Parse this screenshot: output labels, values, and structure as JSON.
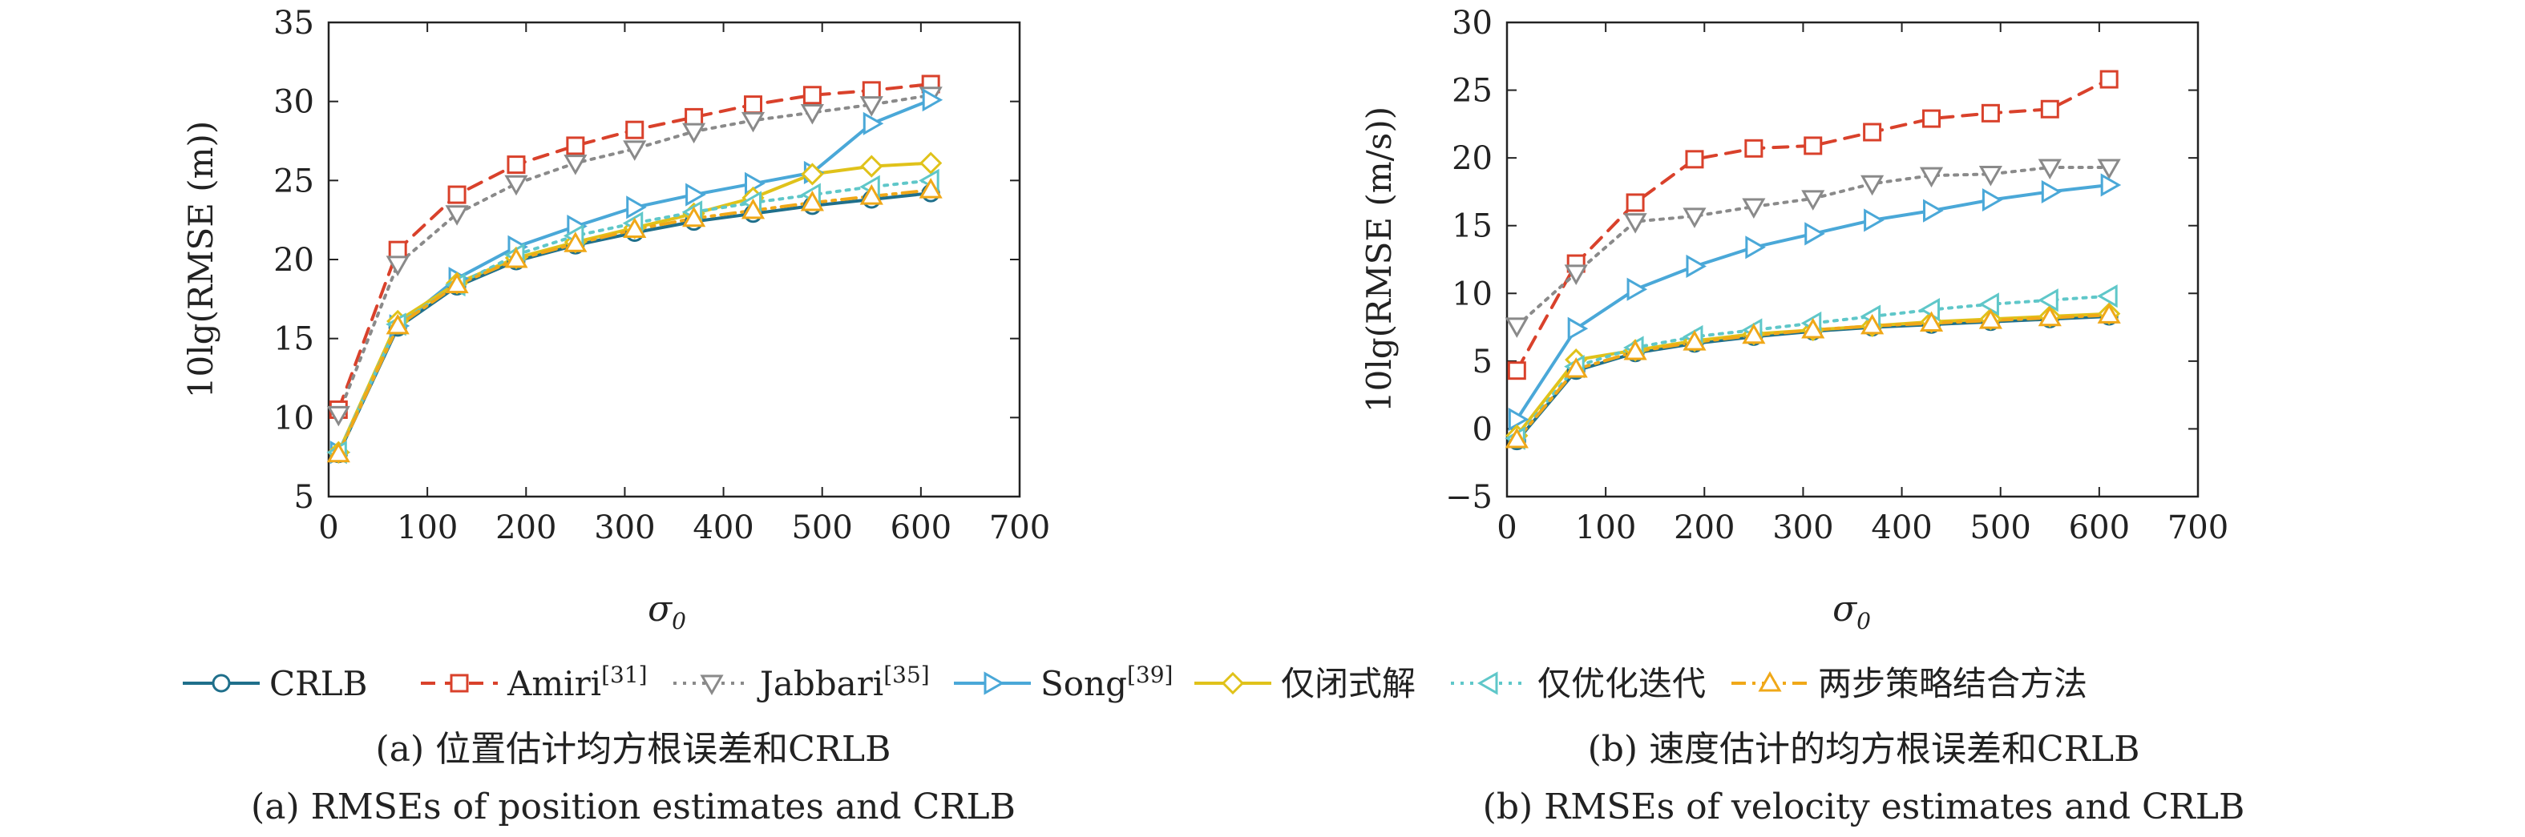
{
  "colors": {
    "CRLB": "#1f6f8b",
    "Amiri": "#d9412b",
    "Jabbari": "#8a8a8a",
    "Song": "#4aa8d8",
    "closed": "#e0c21a",
    "iter": "#5fc7c9",
    "two": "#f0a818"
  },
  "legend": [
    {
      "id": "CRLB",
      "label": "CRLB",
      "sup": "",
      "marker": "circle",
      "dash": "solid"
    },
    {
      "id": "Amiri",
      "label": "Amiri",
      "sup": "[31]",
      "marker": "square",
      "dash": "dashed"
    },
    {
      "id": "Jabbari",
      "label": "Jabbari",
      "sup": "[35]",
      "marker": "triangle-down",
      "dash": "dotted"
    },
    {
      "id": "Song",
      "label": "Song",
      "sup": "[39]",
      "marker": "triangle-right",
      "dash": "solid"
    },
    {
      "id": "closed",
      "label": "仅闭式解",
      "sup": "",
      "marker": "diamond",
      "dash": "solid"
    },
    {
      "id": "iter",
      "label": "仅优化迭代",
      "sup": "",
      "marker": "triangle-left",
      "dash": "dotted"
    },
    {
      "id": "two",
      "label": "两步策略结合方法",
      "sup": "",
      "marker": "triangle-up",
      "dash": "dashdot"
    }
  ],
  "chart_data": [
    {
      "type": "line",
      "caption_cn": "(a) 位置估计均方根误差和CRLB",
      "caption_en": "(a) RMSEs of position estimates and CRLB",
      "xlabel": "σ",
      "xlabel_sub": "0",
      "ylabel": "10lg(RMSE (m))",
      "xlim": [
        0,
        700
      ],
      "ylim": [
        5,
        35
      ],
      "xticks": [
        0,
        100,
        200,
        300,
        400,
        500,
        600,
        700
      ],
      "yticks": [
        5,
        10,
        15,
        20,
        25,
        30,
        35
      ],
      "x": [
        10,
        70,
        130,
        190,
        250,
        310,
        370,
        430,
        490,
        550,
        610
      ],
      "series": [
        {
          "id": "CRLB",
          "name": "CRLB",
          "values": [
            7.7,
            15.7,
            18.3,
            19.9,
            20.9,
            21.7,
            22.4,
            22.9,
            23.4,
            23.8,
            24.2
          ]
        },
        {
          "id": "Amiri",
          "name": "Amiri[31]",
          "values": [
            10.5,
            20.6,
            24.1,
            26.0,
            27.2,
            28.2,
            29.0,
            29.8,
            30.4,
            30.7,
            31.1
          ]
        },
        {
          "id": "Jabbari",
          "name": "Jabbari[35]",
          "values": [
            10.2,
            19.7,
            22.9,
            24.8,
            26.1,
            27.0,
            28.1,
            28.8,
            29.3,
            29.8,
            30.4
          ]
        },
        {
          "id": "Song",
          "name": "Song[39]",
          "values": [
            7.8,
            15.8,
            18.8,
            20.8,
            22.1,
            23.3,
            24.1,
            24.8,
            25.5,
            28.6,
            30.1
          ]
        },
        {
          "id": "closed",
          "name": "仅闭式解",
          "values": [
            7.8,
            16.1,
            18.5,
            20.1,
            21.1,
            22.0,
            22.9,
            23.9,
            25.4,
            25.9,
            26.1
          ]
        },
        {
          "id": "iter",
          "name": "仅优化迭代",
          "values": [
            7.8,
            15.9,
            18.4,
            20.3,
            21.5,
            22.3,
            23.0,
            23.6,
            24.1,
            24.6,
            25.0
          ]
        },
        {
          "id": "two",
          "name": "两步策略结合方法",
          "values": [
            7.7,
            15.8,
            18.4,
            20.0,
            21.0,
            21.9,
            22.6,
            23.1,
            23.6,
            24.0,
            24.4
          ]
        }
      ]
    },
    {
      "type": "line",
      "caption_cn": "(b) 速度估计的均方根误差和CRLB",
      "caption_en": "(b) RMSEs of velocity estimates and CRLB",
      "xlabel": "σ",
      "xlabel_sub": "0",
      "ylabel": "10lg(RMSE (m/s))",
      "xlim": [
        0,
        700
      ],
      "ylim": [
        -5,
        30
      ],
      "xticks": [
        0,
        100,
        200,
        300,
        400,
        500,
        600,
        700
      ],
      "yticks": [
        -5,
        0,
        5,
        10,
        15,
        20,
        25,
        30
      ],
      "x": [
        10,
        70,
        130,
        190,
        250,
        310,
        370,
        430,
        490,
        550,
        610
      ],
      "series": [
        {
          "id": "CRLB",
          "name": "CRLB",
          "values": [
            -0.9,
            4.3,
            5.6,
            6.3,
            6.8,
            7.2,
            7.5,
            7.7,
            7.9,
            8.1,
            8.3
          ]
        },
        {
          "id": "Amiri",
          "name": "Amiri[31]",
          "values": [
            4.3,
            12.2,
            16.7,
            19.9,
            20.7,
            20.9,
            21.9,
            22.9,
            23.3,
            23.6,
            25.8
          ]
        },
        {
          "id": "Jabbari",
          "name": "Jabbari[35]",
          "values": [
            7.6,
            11.5,
            15.3,
            15.7,
            16.4,
            17.0,
            18.1,
            18.7,
            18.8,
            19.3,
            19.3
          ]
        },
        {
          "id": "Song",
          "name": "Song[39]",
          "values": [
            0.7,
            7.4,
            10.3,
            12.0,
            13.4,
            14.4,
            15.4,
            16.1,
            16.9,
            17.5,
            18.0
          ]
        },
        {
          "id": "closed",
          "name": "仅闭式解",
          "values": [
            -0.5,
            5.1,
            5.8,
            6.5,
            7.0,
            7.3,
            7.6,
            7.9,
            8.1,
            8.3,
            8.5
          ]
        },
        {
          "id": "iter",
          "name": "仅优化迭代",
          "values": [
            -0.7,
            4.6,
            6.0,
            6.8,
            7.3,
            7.8,
            8.3,
            8.8,
            9.2,
            9.5,
            9.8
          ]
        },
        {
          "id": "two",
          "name": "两步策略结合方法",
          "values": [
            -0.8,
            4.4,
            5.7,
            6.4,
            6.9,
            7.3,
            7.6,
            7.8,
            8.0,
            8.2,
            8.4
          ]
        }
      ]
    }
  ]
}
